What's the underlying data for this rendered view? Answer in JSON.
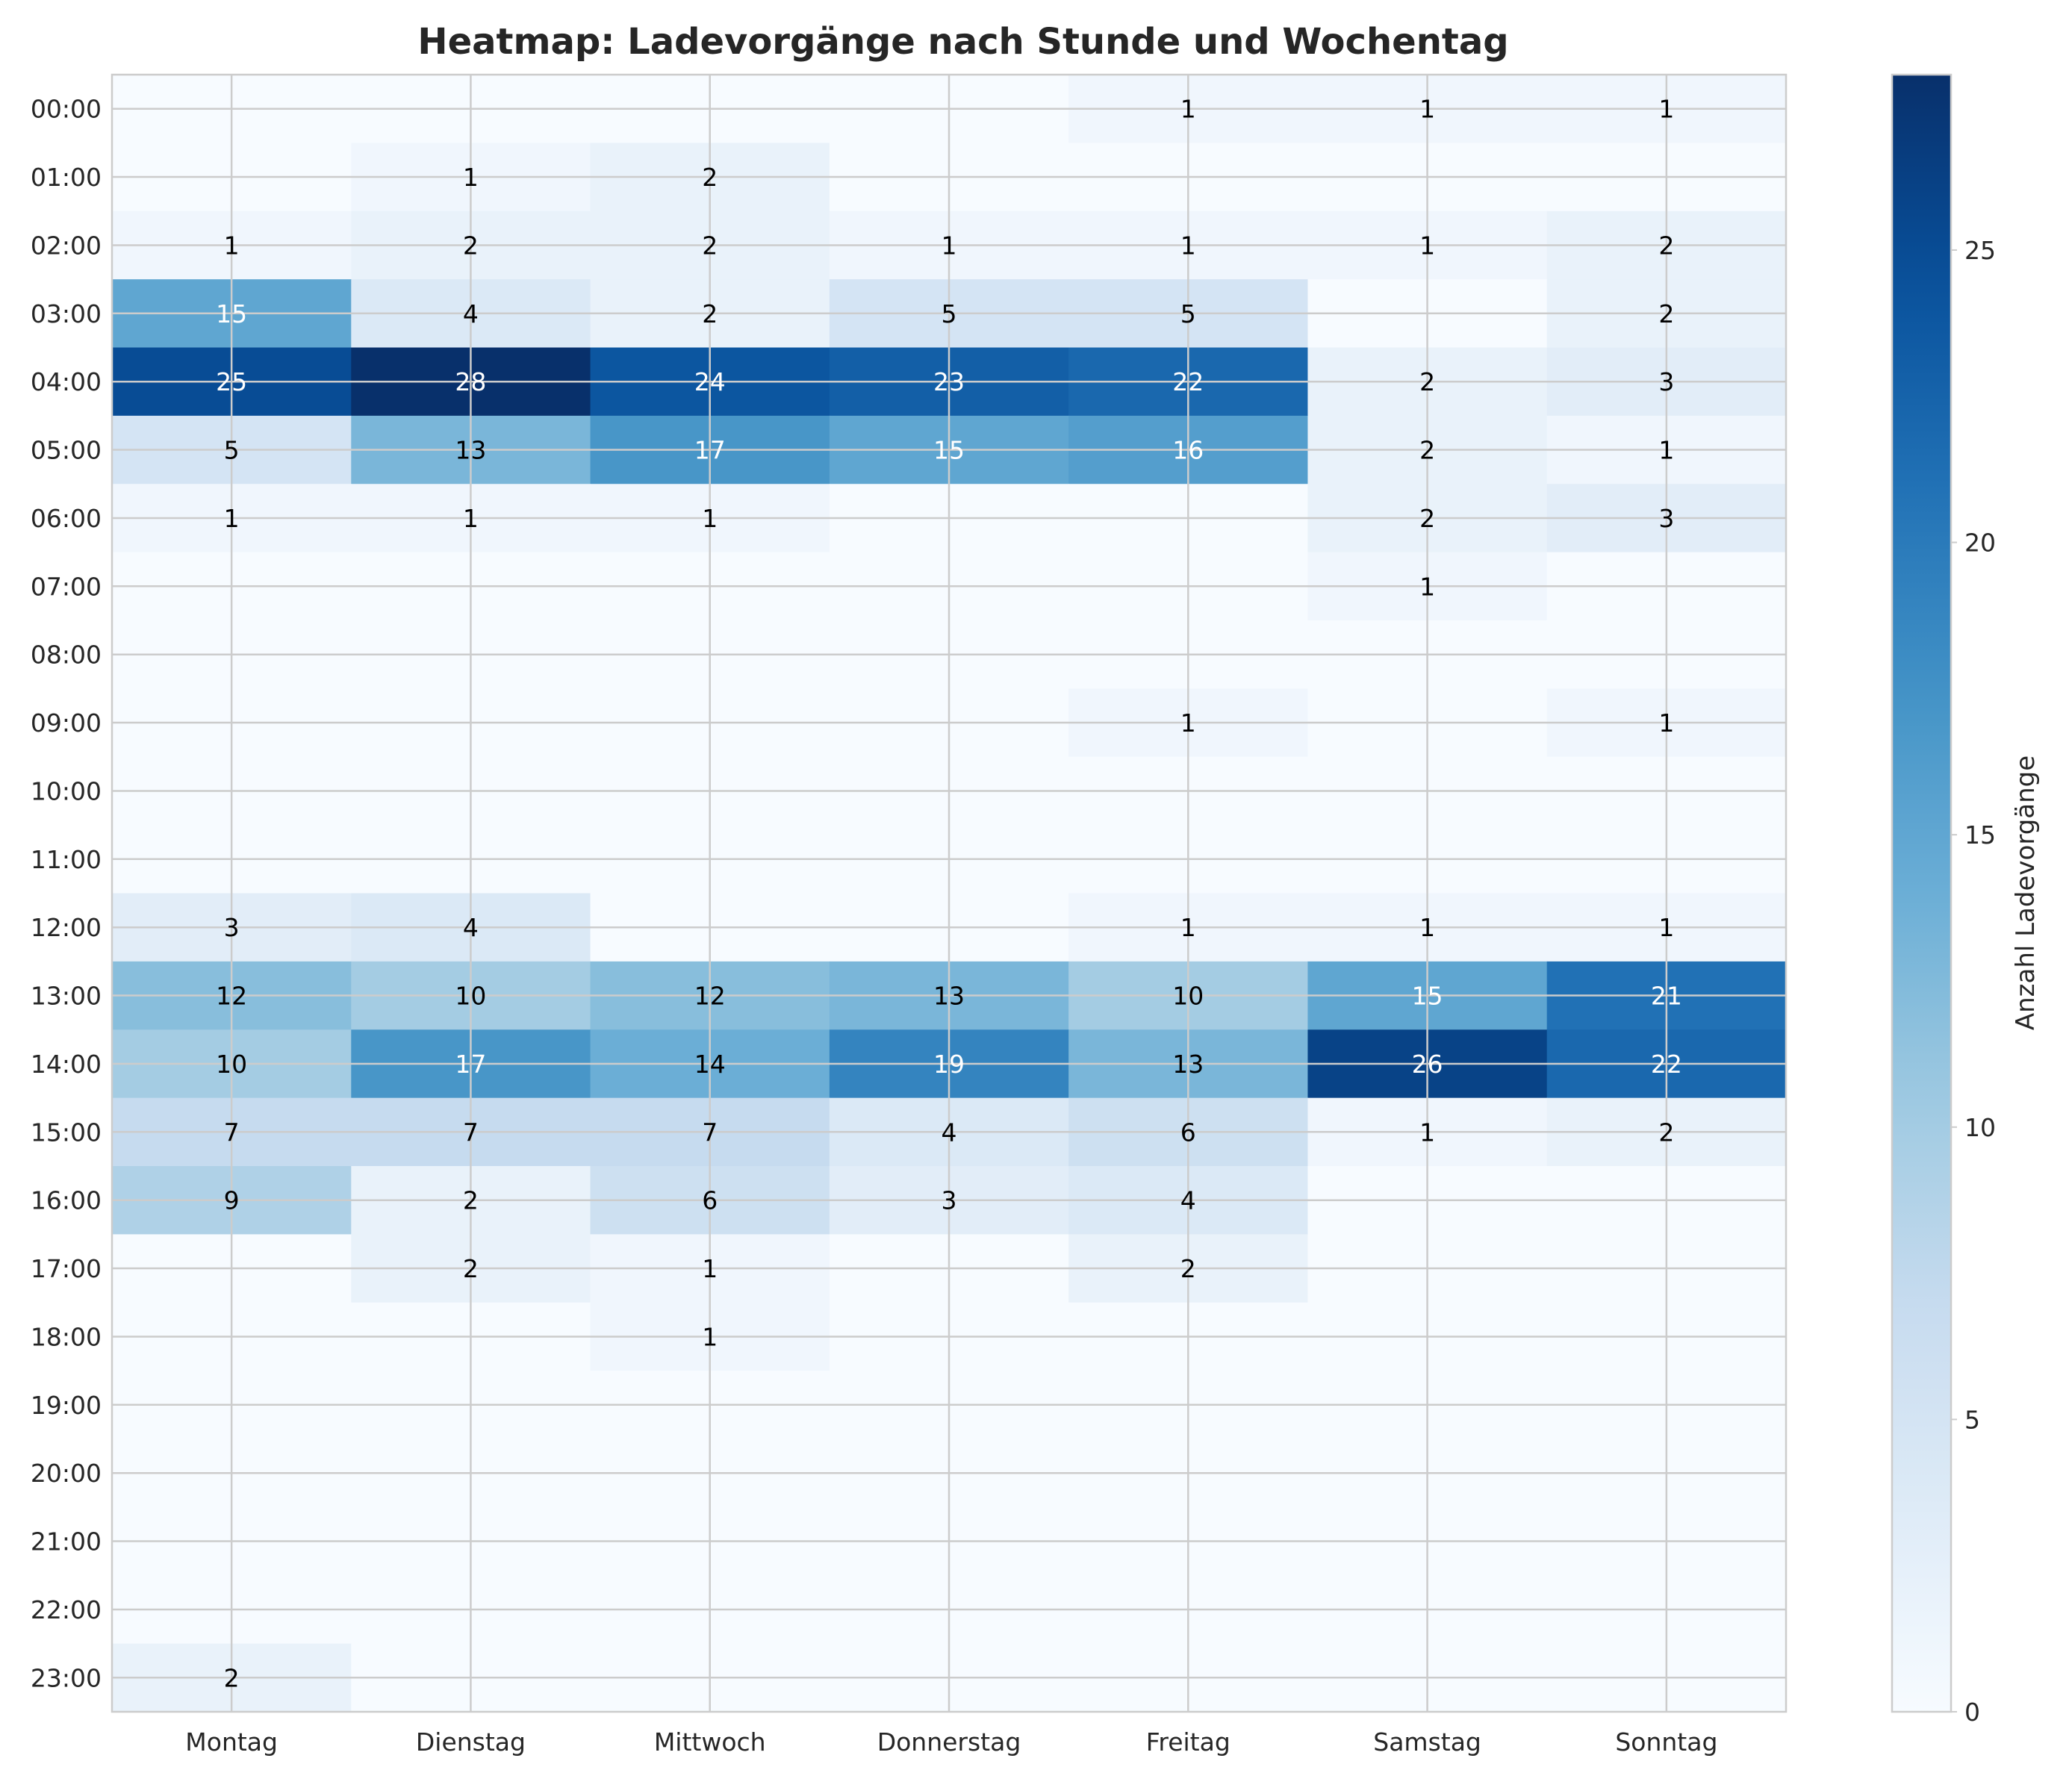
{
  "chart_data": {
    "type": "heatmap",
    "title": "Heatmap: Ladevorgänge nach Stunde und Wochentag",
    "x_categories": [
      "Montag",
      "Dienstag",
      "Mittwoch",
      "Donnerstag",
      "Freitag",
      "Samstag",
      "Sonntag"
    ],
    "y_categories": [
      "00:00",
      "01:00",
      "02:00",
      "03:00",
      "04:00",
      "05:00",
      "06:00",
      "07:00",
      "08:00",
      "09:00",
      "10:00",
      "11:00",
      "12:00",
      "13:00",
      "14:00",
      "15:00",
      "16:00",
      "17:00",
      "18:00",
      "19:00",
      "20:00",
      "21:00",
      "22:00",
      "23:00"
    ],
    "values": [
      [
        0,
        0,
        0,
        0,
        1,
        1,
        1
      ],
      [
        0,
        1,
        2,
        0,
        0,
        0,
        0
      ],
      [
        1,
        2,
        2,
        1,
        1,
        1,
        2
      ],
      [
        15,
        4,
        2,
        5,
        5,
        0,
        2
      ],
      [
        25,
        28,
        24,
        23,
        22,
        2,
        3
      ],
      [
        5,
        13,
        17,
        15,
        16,
        2,
        1
      ],
      [
        1,
        1,
        1,
        0,
        0,
        2,
        3
      ],
      [
        0,
        0,
        0,
        0,
        0,
        1,
        0
      ],
      [
        0,
        0,
        0,
        0,
        0,
        0,
        0
      ],
      [
        0,
        0,
        0,
        0,
        1,
        0,
        1
      ],
      [
        0,
        0,
        0,
        0,
        0,
        0,
        0
      ],
      [
        0,
        0,
        0,
        0,
        0,
        0,
        0
      ],
      [
        3,
        4,
        0,
        0,
        1,
        1,
        1
      ],
      [
        12,
        10,
        12,
        13,
        10,
        15,
        21
      ],
      [
        10,
        17,
        14,
        19,
        13,
        26,
        22
      ],
      [
        7,
        7,
        7,
        4,
        6,
        1,
        2
      ],
      [
        9,
        2,
        6,
        3,
        4,
        0,
        0
      ],
      [
        0,
        2,
        1,
        0,
        2,
        0,
        0
      ],
      [
        0,
        0,
        1,
        0,
        0,
        0,
        0
      ],
      [
        0,
        0,
        0,
        0,
        0,
        0,
        0
      ],
      [
        0,
        0,
        0,
        0,
        0,
        0,
        0
      ],
      [
        0,
        0,
        0,
        0,
        0,
        0,
        0
      ],
      [
        0,
        0,
        0,
        0,
        0,
        0,
        0
      ],
      [
        2,
        0,
        0,
        0,
        0,
        0,
        0
      ]
    ],
    "zero_label_hidden": true,
    "colorbar": {
      "label": "Anzahl Ladevorgänge",
      "min": 0,
      "max": 28,
      "ticks": [
        0,
        5,
        10,
        15,
        20,
        25
      ],
      "colormap": "Blues"
    },
    "grid": true
  }
}
